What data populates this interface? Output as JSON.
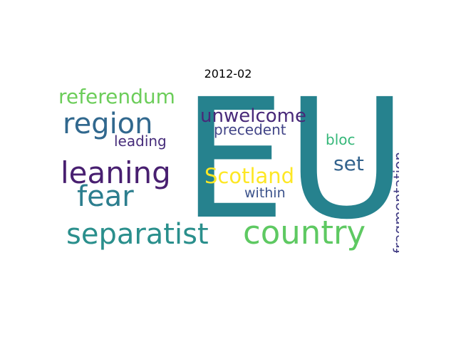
{
  "chart_data": {
    "type": "wordcloud",
    "title": "2012-02",
    "words": [
      {
        "text": "EU",
        "color": "#26828e"
      },
      {
        "text": "country",
        "color": "#5ec962"
      },
      {
        "text": "separatist",
        "color": "#2a8f8c"
      },
      {
        "text": "leaning",
        "color": "#481f70"
      },
      {
        "text": "region",
        "color": "#31688e"
      },
      {
        "text": "fear",
        "color": "#2c7e8e"
      },
      {
        "text": "referendum",
        "color": "#6ccd5a"
      },
      {
        "text": "unwelcome",
        "color": "#482979"
      },
      {
        "text": "Scotland",
        "color": "#fde725"
      },
      {
        "text": "set",
        "color": "#33638d"
      },
      {
        "text": "precedent",
        "color": "#414487"
      },
      {
        "text": "fragmentation",
        "color": "#433e85"
      },
      {
        "text": "leading",
        "color": "#472d7b"
      },
      {
        "text": "within",
        "color": "#3b528b"
      },
      {
        "text": "bloc",
        "color": "#35b779"
      }
    ]
  }
}
